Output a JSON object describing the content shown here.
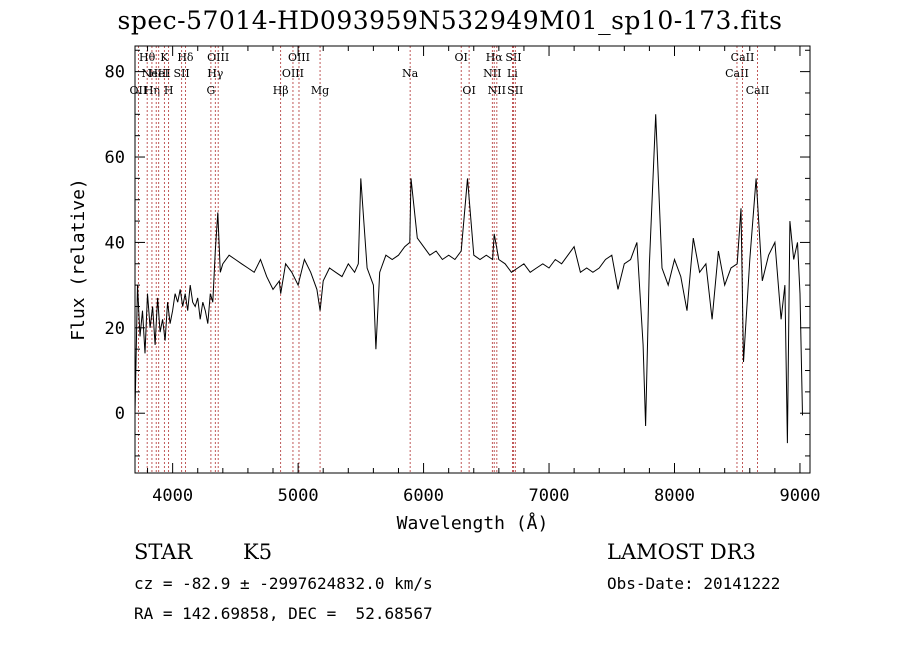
{
  "title": "spec-57014-HD093959N532949M01_sp10-173.fits",
  "info": {
    "class": "STAR",
    "subclass": "K5",
    "survey": "LAMOST DR3",
    "cz": "cz = -82.9 ± -2997624832.0 km/s",
    "obs_date": "Obs-Date: 20141222",
    "radec": "RA = 142.69858, DEC =  52.68567"
  },
  "chart_data": {
    "type": "line",
    "title": "spec-57014-HD093959N532949M01_sp10-173.fits",
    "xlabel": "Wavelength (Å)",
    "ylabel": "Flux (relative)",
    "xlim": [
      3700,
      9080
    ],
    "ylim": [
      -14,
      86
    ],
    "x_ticks": [
      4000,
      5000,
      6000,
      7000,
      8000,
      9000
    ],
    "y_ticks": [
      0,
      20,
      40,
      60,
      80
    ],
    "line_color": "#000000",
    "marker_color": "#b03030",
    "spectrum": {
      "x": [
        3700,
        3720,
        3740,
        3760,
        3780,
        3800,
        3820,
        3840,
        3860,
        3880,
        3900,
        3920,
        3940,
        3960,
        3980,
        4000,
        4020,
        4040,
        4060,
        4080,
        4100,
        4120,
        4140,
        4160,
        4180,
        4200,
        4220,
        4240,
        4260,
        4280,
        4300,
        4320,
        4340,
        4360,
        4380,
        4400,
        4450,
        4500,
        4550,
        4600,
        4650,
        4700,
        4750,
        4800,
        4850,
        4861,
        4900,
        4950,
        5000,
        5050,
        5100,
        5150,
        5175,
        5200,
        5250,
        5300,
        5350,
        5400,
        5450,
        5480,
        5500,
        5550,
        5600,
        5620,
        5650,
        5700,
        5750,
        5800,
        5850,
        5890,
        5900,
        5950,
        6000,
        6050,
        6100,
        6150,
        6200,
        6250,
        6300,
        6350,
        6400,
        6450,
        6500,
        6550,
        6563,
        6600,
        6650,
        6700,
        6750,
        6800,
        6850,
        6900,
        6950,
        7000,
        7050,
        7100,
        7150,
        7200,
        7250,
        7300,
        7350,
        7400,
        7450,
        7500,
        7550,
        7600,
        7650,
        7700,
        7750,
        7770,
        7800,
        7850,
        7900,
        7950,
        8000,
        8050,
        8100,
        8150,
        8200,
        8250,
        8300,
        8350,
        8400,
        8450,
        8500,
        8530,
        8550,
        8600,
        8650,
        8700,
        8750,
        8800,
        8850,
        8880,
        8900,
        8920,
        8950,
        8980,
        9000,
        9020
      ],
      "y": [
        0,
        30,
        18,
        24,
        14,
        28,
        20,
        25,
        16,
        27,
        19,
        22,
        17,
        26,
        21,
        24,
        28,
        26,
        29,
        25,
        28,
        24,
        30,
        26,
        25,
        27,
        22,
        26,
        24,
        21,
        28,
        26,
        38,
        47,
        33,
        35,
        37,
        36,
        35,
        34,
        33,
        36,
        32,
        29,
        31,
        28,
        35,
        33,
        30,
        36,
        33,
        29,
        24,
        31,
        34,
        33,
        32,
        35,
        33,
        35,
        55,
        34,
        30,
        15,
        33,
        37,
        36,
        37,
        39,
        40,
        55,
        41,
        39,
        37,
        38,
        36,
        37,
        36,
        38,
        55,
        37,
        36,
        37,
        36,
        42,
        36,
        35,
        33,
        34,
        35,
        33,
        34,
        35,
        34,
        36,
        35,
        37,
        39,
        33,
        34,
        33,
        34,
        36,
        37,
        29,
        35,
        36,
        40,
        16,
        -3,
        35,
        70,
        34,
        30,
        36,
        32,
        24,
        41,
        33,
        35,
        22,
        38,
        30,
        34,
        35,
        48,
        12,
        36,
        55,
        31,
        37,
        40,
        22,
        30,
        -7,
        45,
        36,
        40,
        28,
        -0.5
      ]
    },
    "line_markers": [
      {
        "x": 3727,
        "label": "OII",
        "row": 2
      },
      {
        "x": 3797,
        "label": "Hθ",
        "row": 0
      },
      {
        "x": 3835,
        "label": "Hη",
        "row": 2
      },
      {
        "x": 3869,
        "label": "NeIII",
        "row": 1
      },
      {
        "x": 3889,
        "label": "HeI",
        "row": 1
      },
      {
        "x": 3934,
        "label": "K",
        "row": 0
      },
      {
        "x": 3968,
        "label": "H",
        "row": 2
      },
      {
        "x": 4072,
        "label": "SII",
        "row": 1
      },
      {
        "x": 4102,
        "label": "Hδ",
        "row": 0
      },
      {
        "x": 4305,
        "label": "G",
        "row": 2
      },
      {
        "x": 4340,
        "label": "Hγ",
        "row": 1
      },
      {
        "x": 4363,
        "label": "OIII",
        "row": 0
      },
      {
        "x": 4861,
        "label": "Hβ",
        "row": 2
      },
      {
        "x": 4959,
        "label": "OIII",
        "row": 1
      },
      {
        "x": 5007,
        "label": "OIII",
        "row": 0
      },
      {
        "x": 5175,
        "label": "Mg",
        "row": 2
      },
      {
        "x": 5893,
        "label": "Na",
        "row": 1
      },
      {
        "x": 6300,
        "label": "OI",
        "row": 0
      },
      {
        "x": 6363,
        "label": "OI",
        "row": 2
      },
      {
        "x": 6548,
        "label": "NII",
        "row": 1
      },
      {
        "x": 6563,
        "label": "Hα",
        "row": 0
      },
      {
        "x": 6584,
        "label": "NII",
        "row": 2
      },
      {
        "x": 6708,
        "label": "Li",
        "row": 1
      },
      {
        "x": 6717,
        "label": "SII",
        "row": 0
      },
      {
        "x": 6731,
        "label": "SII",
        "row": 2
      },
      {
        "x": 8498,
        "label": "CaII",
        "row": 1
      },
      {
        "x": 8542,
        "label": "CaII",
        "row": 0
      },
      {
        "x": 8662,
        "label": "CaII",
        "row": 2
      }
    ]
  }
}
